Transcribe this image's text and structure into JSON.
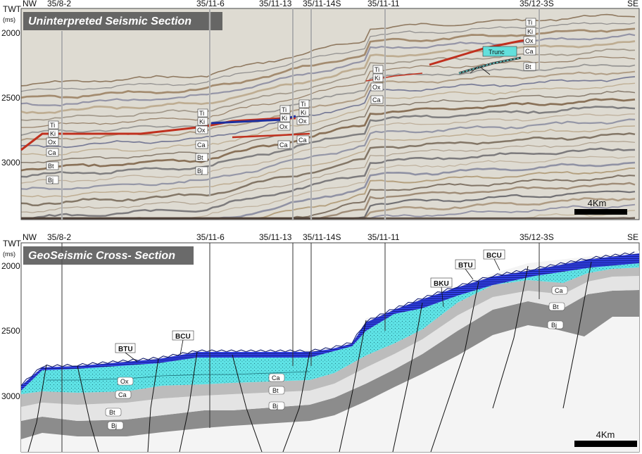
{
  "axis": {
    "unit_top": "TWT",
    "unit_bottom": "(ms)",
    "ticks": [
      "2000",
      "2500",
      "3000"
    ]
  },
  "directions": {
    "left": "NW",
    "right": "SE"
  },
  "wells": [
    "35/8-2",
    "35/11-6",
    "35/11-13",
    "35/11-14S",
    "35/11-11",
    "35/12-3S"
  ],
  "panels": [
    {
      "title": "Uninterpreted Seismic Section",
      "scale_label": "4Km"
    },
    {
      "title": "GeoSeismic Cross- Section",
      "scale_label": "4Km"
    }
  ],
  "horizon_tags": [
    "Ti",
    "Ki",
    "Ox",
    "Ca",
    "Bt",
    "Bj"
  ],
  "trunc_label": "Trunc",
  "unconformity_labels": [
    "BTU",
    "BCU",
    "BKU",
    "BTU",
    "BCU"
  ],
  "layer_labels": [
    "Ox",
    "Ca",
    "Bt",
    "Bj"
  ],
  "colors": {
    "seismic_red": "#c0301e",
    "seismic_blue": "#1c2fa0",
    "cretaceous_blue": "#1a2bd6",
    "upper_jurassic_cyan": "#57e2e7",
    "grey_dark": "#8a8a8a",
    "grey_light": "#e6e6e6"
  }
}
